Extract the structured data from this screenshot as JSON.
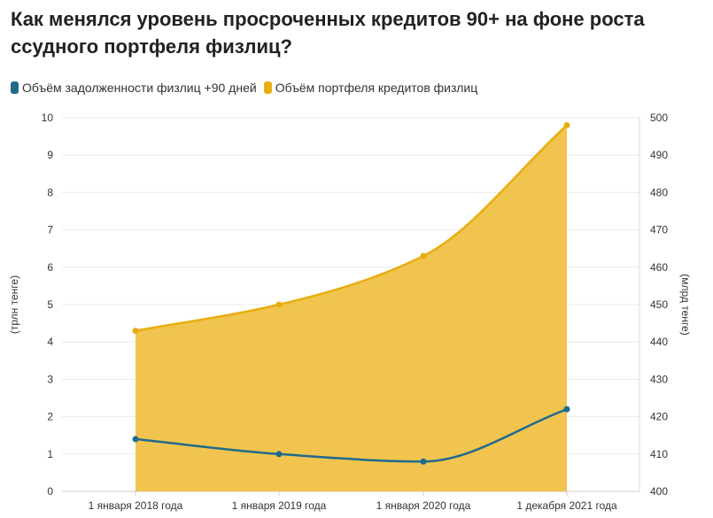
{
  "title": "Как менялся уровень просроченных кредитов 90+ на фоне роста ссудного портфеля физлиц?",
  "chart_data": {
    "type": "line",
    "categories": [
      "1 января 2018 года",
      "1 января 2019 года",
      "1 января 2020 года",
      "1 декабря 2021 года"
    ],
    "series": [
      {
        "name": "Объём задолженности физлиц +90 дней",
        "axis": "right",
        "color": "#1f6a8c",
        "values": [
          414,
          410,
          408,
          422
        ]
      },
      {
        "name": "Объём портфеля кредитов физлиц",
        "axis": "left",
        "color": "#e8ad10",
        "fill": "#f0c44f",
        "area": true,
        "values": [
          4.3,
          5.0,
          6.3,
          9.8
        ]
      }
    ],
    "ylabel_left": "(трлн тенге)",
    "ylabel_right": "(млрд тенге)",
    "ylim_left": [
      0,
      10
    ],
    "ylim_right": [
      400,
      500
    ],
    "yticks_left": [
      "0",
      "1",
      "2",
      "3",
      "4",
      "5",
      "6",
      "7",
      "8",
      "9",
      "10"
    ],
    "yticks_right": [
      "400",
      "410",
      "420",
      "430",
      "440",
      "450",
      "460",
      "470",
      "480",
      "490",
      "500"
    ],
    "grid": true,
    "legend": "top-left"
  }
}
